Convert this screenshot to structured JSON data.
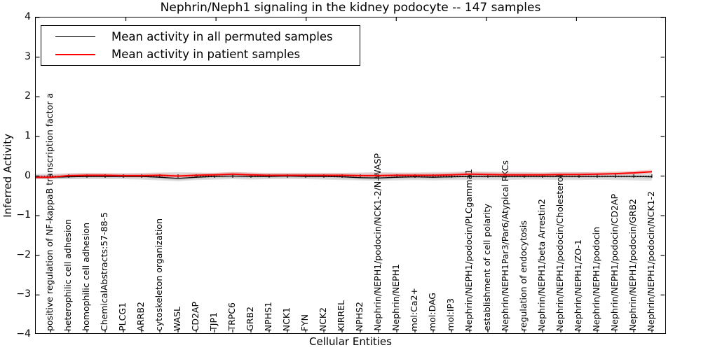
{
  "title": "Nephrin/Neph1 signaling in the kidney podocyte -- 147 samples",
  "axes": {
    "ylabel": "Inferred Activity",
    "xlabel": "Cellular Entities",
    "yticks": [
      "4",
      "3",
      "2",
      "1",
      "0",
      "−1",
      "−2",
      "−3",
      "−4"
    ],
    "ylim": [
      -4,
      4
    ]
  },
  "legend": {
    "items": [
      {
        "label": "Mean activity in all permuted samples",
        "color": "#000000"
      },
      {
        "label": "Mean activity in patient samples",
        "color": "#ff0000"
      }
    ]
  },
  "chart_data": {
    "type": "line",
    "title": "Nephrin/Neph1 signaling in the kidney podocyte -- 147 samples",
    "xlabel": "Cellular Entities",
    "ylabel": "Inferred Activity",
    "ylim": [
      -4,
      4
    ],
    "grid": false,
    "legend_position": "upper left",
    "zero_line_style": "dotted",
    "categories": [
      "positive regulation of NF-kappaB transcription factor a",
      "heterophilic cell adhesion",
      "homophilic cell adhesion",
      "ChemicalAbstracts:57-88-5",
      "PLCG1",
      "ARRB2",
      "cytoskeleton organization",
      "WASL",
      "CD2AP",
      "TJP1",
      "TRPC6",
      "GRB2",
      "NPHS1",
      "NCK1",
      "FYN",
      "NCK2",
      "KIRREL",
      "NPHS2",
      "Nephrin/NEPH1/podocin/NCK1-2/N-WASP",
      "Nephrin/NEPH1",
      "mol:Ca2+",
      "mol:DAG",
      "mol:IP3",
      "Nephrin/NEPH1/podocin/PLCgamma1",
      "establishment of cell polarity",
      "Nephrin/NEPH1Par3/Par6/Atypical PKCs",
      "regulation of endocytosis",
      "Nephrin/NEPH1/beta Arrestin2",
      "Nephrin/NEPH1/podocin/Cholesterol",
      "Nephrin/NEPH1/ZO-1",
      "Nephrin/NEPH1/podocin",
      "Nephrin/NEPH1/podocin/CD2AP",
      "Nephrin/NEPH1/podocin/GRB2",
      "Nephrin/NEPH1/podocin/NCK1-2"
    ],
    "series": [
      {
        "name": "Mean activity in all permuted samples",
        "color": "#000000",
        "values": [
          -0.03,
          -0.02,
          -0.01,
          -0.01,
          -0.01,
          -0.01,
          -0.03,
          -0.06,
          -0.03,
          -0.01,
          0.0,
          -0.01,
          -0.01,
          0.0,
          -0.01,
          -0.01,
          -0.02,
          -0.04,
          -0.05,
          -0.03,
          -0.02,
          -0.03,
          -0.02,
          -0.01,
          -0.01,
          -0.01,
          -0.01,
          -0.01,
          -0.01,
          -0.01,
          -0.01,
          -0.01,
          -0.01,
          -0.02
        ]
      },
      {
        "name": "Mean activity in patient samples",
        "color": "#ff0000",
        "values": [
          -0.03,
          0.01,
          0.02,
          0.02,
          0.01,
          0.01,
          0.02,
          0.0,
          0.02,
          0.03,
          0.05,
          0.03,
          0.02,
          0.02,
          0.02,
          0.02,
          0.02,
          0.01,
          0.01,
          0.02,
          0.02,
          0.02,
          0.03,
          0.05,
          0.04,
          0.03,
          0.03,
          0.03,
          0.04,
          0.04,
          0.05,
          0.06,
          0.08,
          0.11
        ]
      }
    ],
    "permuted_band": {
      "upper": [
        0.06,
        0.07,
        0.08,
        0.07,
        0.07,
        0.08,
        0.09,
        0.1,
        0.09,
        0.08,
        0.1,
        0.09,
        0.08,
        0.08,
        0.08,
        0.08,
        0.08,
        0.09,
        0.1,
        0.09,
        0.09,
        0.1,
        0.1,
        0.12,
        0.11,
        0.1,
        0.1,
        0.09,
        0.1,
        0.1,
        0.09,
        0.1,
        0.11,
        0.13
      ],
      "lower": [
        -0.08,
        -0.08,
        -0.08,
        -0.08,
        -0.08,
        -0.09,
        -0.11,
        -0.13,
        -0.1,
        -0.09,
        -0.08,
        -0.09,
        -0.08,
        -0.08,
        -0.08,
        -0.09,
        -0.1,
        -0.11,
        -0.12,
        -0.11,
        -0.1,
        -0.11,
        -0.1,
        -0.1,
        -0.1,
        -0.1,
        -0.09,
        -0.09,
        -0.1,
        -0.1,
        -0.09,
        -0.1,
        -0.11,
        -0.12
      ],
      "color": "rgba(115,115,115,0.22)"
    },
    "patient_band": {
      "halfwidth_upper": 0.055,
      "halfwidth_lower": 0.04,
      "color": "rgba(255,70,70,0.22)"
    }
  }
}
